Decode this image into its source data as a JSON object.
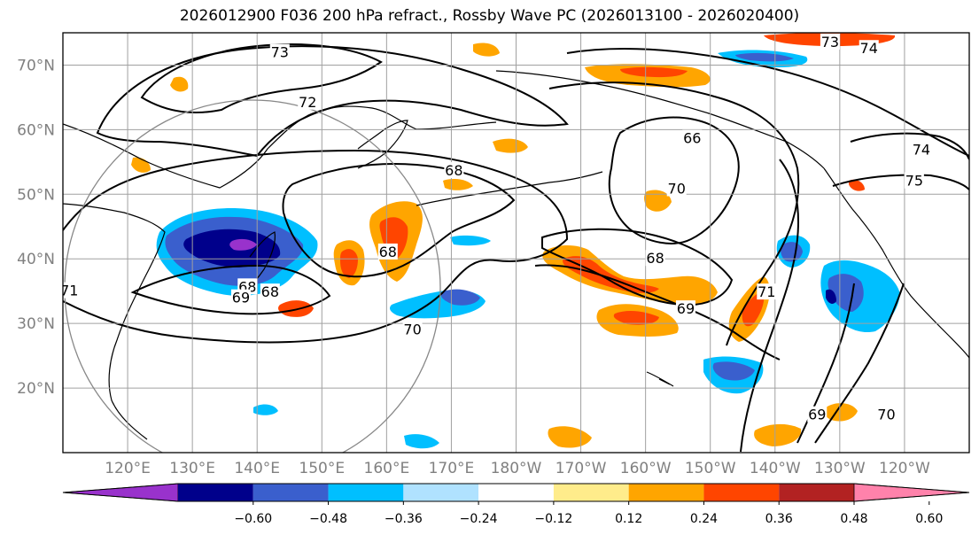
{
  "title": "2026012900 F036 200 hPa refract., Rossby Wave PC (2026013100 - 2026020400)",
  "map": {
    "lon_range": [
      110,
      250
    ],
    "lat_range": [
      10,
      75
    ],
    "lat_ticks": [
      {
        "value": 20,
        "label": "20°N"
      },
      {
        "value": 30,
        "label": "30°N"
      },
      {
        "value": 40,
        "label": "40°N"
      },
      {
        "value": 50,
        "label": "50°N"
      },
      {
        "value": 60,
        "label": "60°N"
      },
      {
        "value": 70,
        "label": "70°N"
      }
    ],
    "lon_ticks": [
      {
        "value": 120,
        "label": "120°E"
      },
      {
        "value": 130,
        "label": "130°E"
      },
      {
        "value": 140,
        "label": "140°E"
      },
      {
        "value": 150,
        "label": "150°E"
      },
      {
        "value": 160,
        "label": "160°E"
      },
      {
        "value": 170,
        "label": "170°E"
      },
      {
        "value": 180,
        "label": "180°W"
      },
      {
        "value": 190,
        "label": "170°W"
      },
      {
        "value": 200,
        "label": "160°W"
      },
      {
        "value": 210,
        "label": "150°W"
      },
      {
        "value": 220,
        "label": "140°W"
      },
      {
        "value": 230,
        "label": "130°W"
      },
      {
        "value": 240,
        "label": "120°W"
      }
    ],
    "grid": true,
    "contour_labels": [
      {
        "text": "73",
        "lon": 143.5,
        "lat": 71.9
      },
      {
        "text": "72",
        "lon": 147.8,
        "lat": 64.2
      },
      {
        "text": "68",
        "lon": 170.4,
        "lat": 53.6
      },
      {
        "text": "68",
        "lon": 160.2,
        "lat": 41.0
      },
      {
        "text": "68",
        "lon": 138.5,
        "lat": 35.6
      },
      {
        "text": "68",
        "lon": 142.0,
        "lat": 34.8
      },
      {
        "text": "69",
        "lon": 137.5,
        "lat": 33.9
      },
      {
        "text": "70",
        "lon": 164.0,
        "lat": 29.0
      },
      {
        "text": "71",
        "lon": 111.0,
        "lat": 35.0
      },
      {
        "text": "73",
        "lon": 228.5,
        "lat": 73.5
      },
      {
        "text": "74",
        "lon": 234.5,
        "lat": 72.5
      },
      {
        "text": "66",
        "lon": 207.2,
        "lat": 58.6
      },
      {
        "text": "70",
        "lon": 204.8,
        "lat": 50.8
      },
      {
        "text": "74",
        "lon": 242.6,
        "lat": 56.8
      },
      {
        "text": "75",
        "lon": 241.5,
        "lat": 52.0
      },
      {
        "text": "68",
        "lon": 201.5,
        "lat": 40.0
      },
      {
        "text": "69",
        "lon": 206.2,
        "lat": 32.2
      },
      {
        "text": "71",
        "lon": 218.7,
        "lat": 34.8
      },
      {
        "text": "69",
        "lon": 226.5,
        "lat": 15.8
      },
      {
        "text": "70",
        "lon": 237.2,
        "lat": 15.8
      }
    ]
  },
  "colorbar": {
    "tick_labels": [
      "−0.60",
      "−0.48",
      "−0.36",
      "−0.24",
      "−0.12",
      "0.12",
      "0.24",
      "0.36",
      "0.48",
      "0.60"
    ],
    "colors": [
      "#9932cc",
      "#00008b",
      "#3a5fcd",
      "#00bfff",
      "#b0e2ff",
      "#ffffff",
      "#ffec8b",
      "#ffa500",
      "#ff4500",
      "#b22222",
      "#ff82ab"
    ]
  },
  "colors": {
    "grid": "#a0a0a0",
    "contour": "#000000",
    "frame": "#000000"
  }
}
